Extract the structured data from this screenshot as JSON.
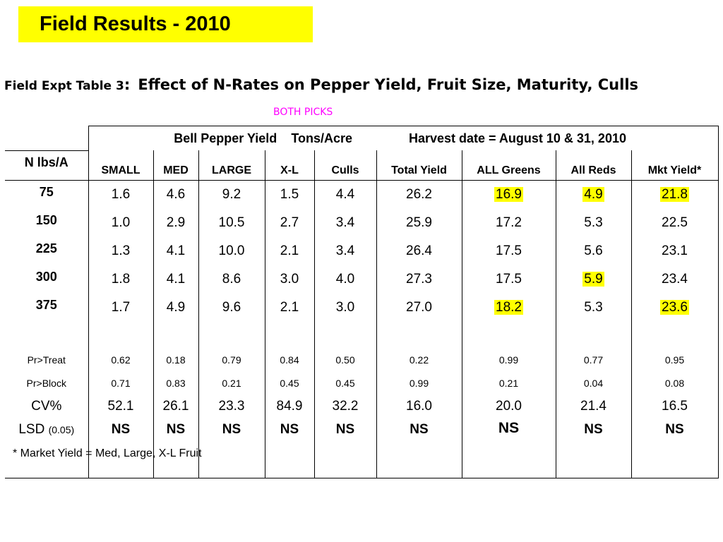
{
  "banner": {
    "title": "Field Results - 2010",
    "color": "#ffff00"
  },
  "table_title": {
    "prefix": "Field Expt Table 3",
    "separator": ":",
    "main": "Effect of N-Rates on Pepper Yield, Fruit Size, Maturity, Culls"
  },
  "subheading": {
    "text": "BOTH  PICKS",
    "color": "#ff00ff"
  },
  "group_headers": {
    "yield": "Bell Pepper Yield",
    "units": "Tons/Acre",
    "harvest": "Harvest date = August 10 & 31, 2010"
  },
  "columns": {
    "rowlabel": "N lbs/A",
    "small": "SMALL",
    "med": "MED",
    "large": "LARGE",
    "xl": "X-L",
    "culls": "Culls",
    "total": "Total Yield",
    "greens": "ALL Greens",
    "reds": "All Reds",
    "mkt": "Mkt Yield*"
  },
  "rows": [
    {
      "n": "75",
      "small": "1.6",
      "med": "4.6",
      "large": "9.2",
      "xl": "1.5",
      "culls": "4.4",
      "total": "26.2",
      "greens": "16.9",
      "reds": "4.9",
      "mkt": "21.8"
    },
    {
      "n": "150",
      "small": "1.0",
      "med": "2.9",
      "large": "10.5",
      "xl": "2.7",
      "culls": "3.4",
      "total": "25.9",
      "greens": "17.2",
      "reds": "5.3",
      "mkt": "22.5"
    },
    {
      "n": "225",
      "small": "1.3",
      "med": "4.1",
      "large": "10.0",
      "xl": "2.1",
      "culls": "3.4",
      "total": "26.4",
      "greens": "17.5",
      "reds": "5.6",
      "mkt": "23.1"
    },
    {
      "n": "300",
      "small": "1.8",
      "med": "4.1",
      "large": "8.6",
      "xl": "3.0",
      "culls": "4.0",
      "total": "27.3",
      "greens": "17.5",
      "reds": "5.9",
      "mkt": "23.4"
    },
    {
      "n": "375",
      "small": "1.7",
      "med": "4.9",
      "large": "9.6",
      "xl": "2.1",
      "culls": "3.0",
      "total": "27.0",
      "greens": "18.2",
      "reds": "5.3",
      "mkt": "23.6"
    }
  ],
  "highlight_color": "#ffff00",
  "stats": {
    "pr_treat": {
      "label": "Pr>Treat",
      "small": "0.62",
      "med": "0.18",
      "large": "0.79",
      "xl": "0.84",
      "culls": "0.50",
      "total": "0.22",
      "greens": "0.99",
      "reds": "0.77",
      "mkt": "0.95"
    },
    "pr_block": {
      "label": "Pr>Block",
      "small": "0.71",
      "med": "0.83",
      "large": "0.21",
      "xl": "0.45",
      "culls": "0.45",
      "total": "0.99",
      "greens": "0.21",
      "reds": "0.04",
      "mkt": "0.08"
    },
    "cv": {
      "label": "CV%",
      "small": "52.1",
      "med": "26.1",
      "large": "23.3",
      "xl": "84.9",
      "culls": "32.2",
      "total": "16.0",
      "greens": "20.0",
      "reds": "21.4",
      "mkt": "16.5"
    },
    "lsd": {
      "label": "LSD",
      "label_sub": "(0.05)",
      "small": "NS",
      "med": "NS",
      "large": "NS",
      "xl": "NS",
      "culls": "NS",
      "total": "NS",
      "greens": "NS",
      "reds": "NS",
      "mkt": "NS"
    }
  },
  "footnote": "* Market Yield = Med, Large, X-L Fruit"
}
